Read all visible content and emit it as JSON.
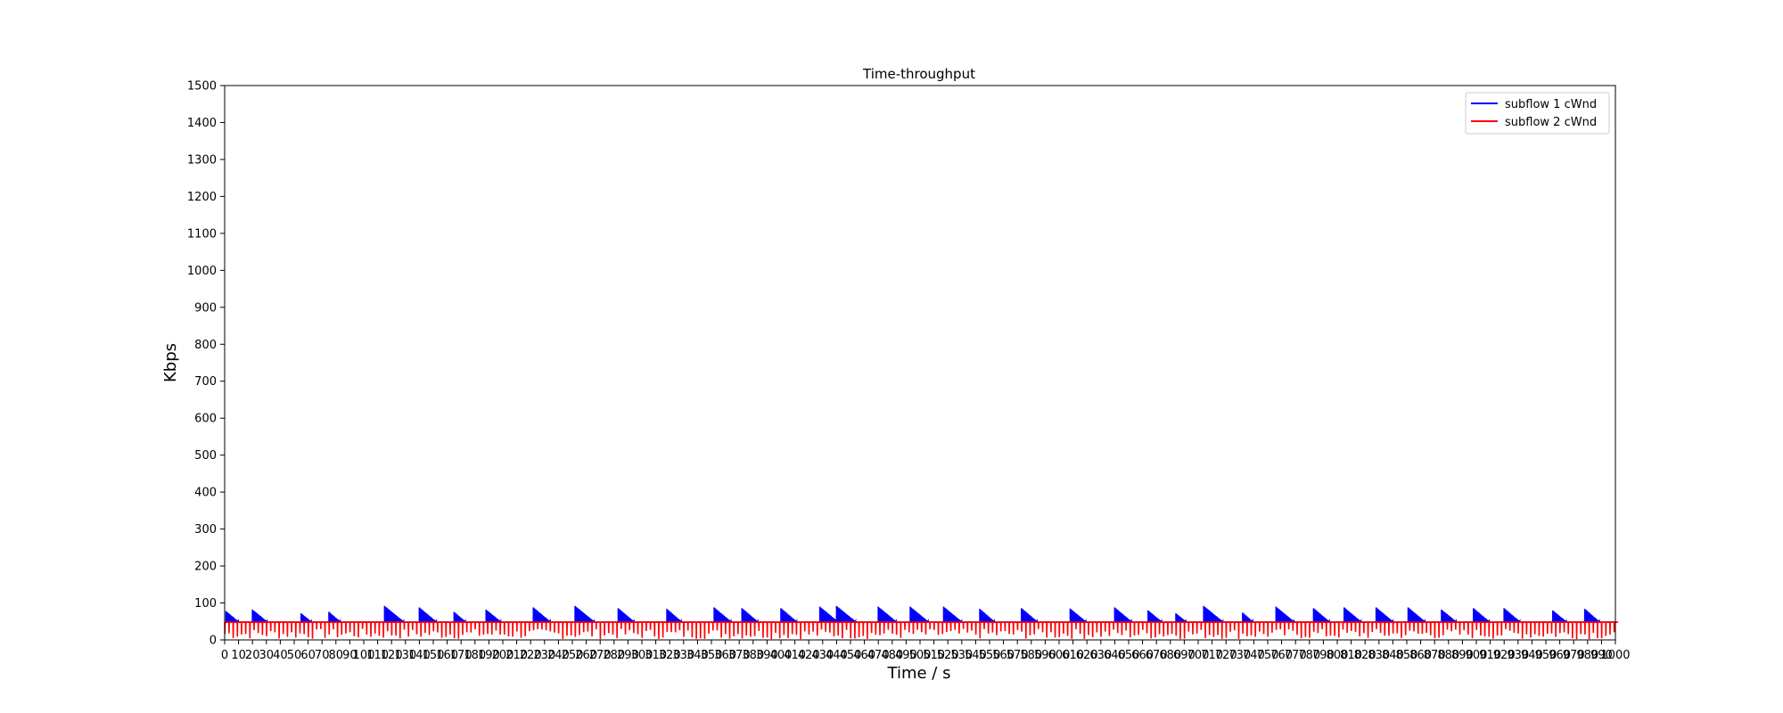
{
  "chart_data": {
    "type": "line",
    "title": "Time-throughput",
    "xlabel": "Time / s",
    "ylabel": "Kbps",
    "xlim": [
      0,
      1000
    ],
    "ylim": [
      0,
      1500
    ],
    "yticks": [
      0,
      100,
      200,
      300,
      400,
      500,
      600,
      700,
      800,
      900,
      1000,
      1100,
      1200,
      1300,
      1400,
      1500
    ],
    "xticks": [
      0,
      10,
      20,
      30,
      40,
      50,
      60,
      70,
      80,
      90,
      100,
      110,
      120,
      130,
      140,
      150,
      160,
      170,
      180,
      190,
      200,
      210,
      220,
      230,
      240,
      250,
      260,
      270,
      280,
      290,
      300,
      310,
      320,
      330,
      340,
      350,
      360,
      370,
      380,
      390,
      400,
      410,
      420,
      430,
      440,
      450,
      460,
      470,
      480,
      490,
      500,
      510,
      520,
      530,
      540,
      550,
      560,
      570,
      580,
      590,
      600,
      610,
      620,
      630,
      640,
      650,
      660,
      670,
      680,
      690,
      700,
      710,
      720,
      730,
      740,
      750,
      760,
      770,
      780,
      790,
      800,
      810,
      820,
      830,
      840,
      850,
      860,
      870,
      880,
      890,
      900,
      910,
      920,
      930,
      940,
      950,
      960,
      970,
      980,
      990,
      1000
    ],
    "grid": false,
    "legend_position": "top-right",
    "series": [
      {
        "name": "subflow 1 cWnd",
        "color": "#0000ff",
        "pattern": "sawtooth",
        "base": 48,
        "peaks": [
          [
            1,
            78
          ],
          [
            20,
            82
          ],
          [
            55,
            72
          ],
          [
            75,
            76
          ],
          [
            115,
            92
          ],
          [
            140,
            88
          ],
          [
            165,
            76
          ],
          [
            188,
            82
          ],
          [
            222,
            88
          ],
          [
            252,
            92
          ],
          [
            283,
            86
          ],
          [
            318,
            84
          ],
          [
            352,
            88
          ],
          [
            372,
            86
          ],
          [
            400,
            86
          ],
          [
            428,
            90
          ],
          [
            440,
            92
          ],
          [
            470,
            90
          ],
          [
            493,
            90
          ],
          [
            517,
            90
          ],
          [
            543,
            84
          ],
          [
            573,
            86
          ],
          [
            608,
            85
          ],
          [
            640,
            88
          ],
          [
            664,
            80
          ],
          [
            684,
            72
          ],
          [
            704,
            92
          ],
          [
            732,
            74
          ],
          [
            756,
            90
          ],
          [
            783,
            86
          ],
          [
            805,
            88
          ],
          [
            828,
            88
          ],
          [
            851,
            88
          ],
          [
            875,
            82
          ],
          [
            898,
            86
          ],
          [
            920,
            86
          ],
          [
            955,
            80
          ],
          [
            978,
            84
          ]
        ]
      },
      {
        "name": "subflow 2 cWnd",
        "color": "#ff0000",
        "pattern": "sawtooth",
        "base": 48,
        "low": 2,
        "period": 3
      }
    ]
  }
}
